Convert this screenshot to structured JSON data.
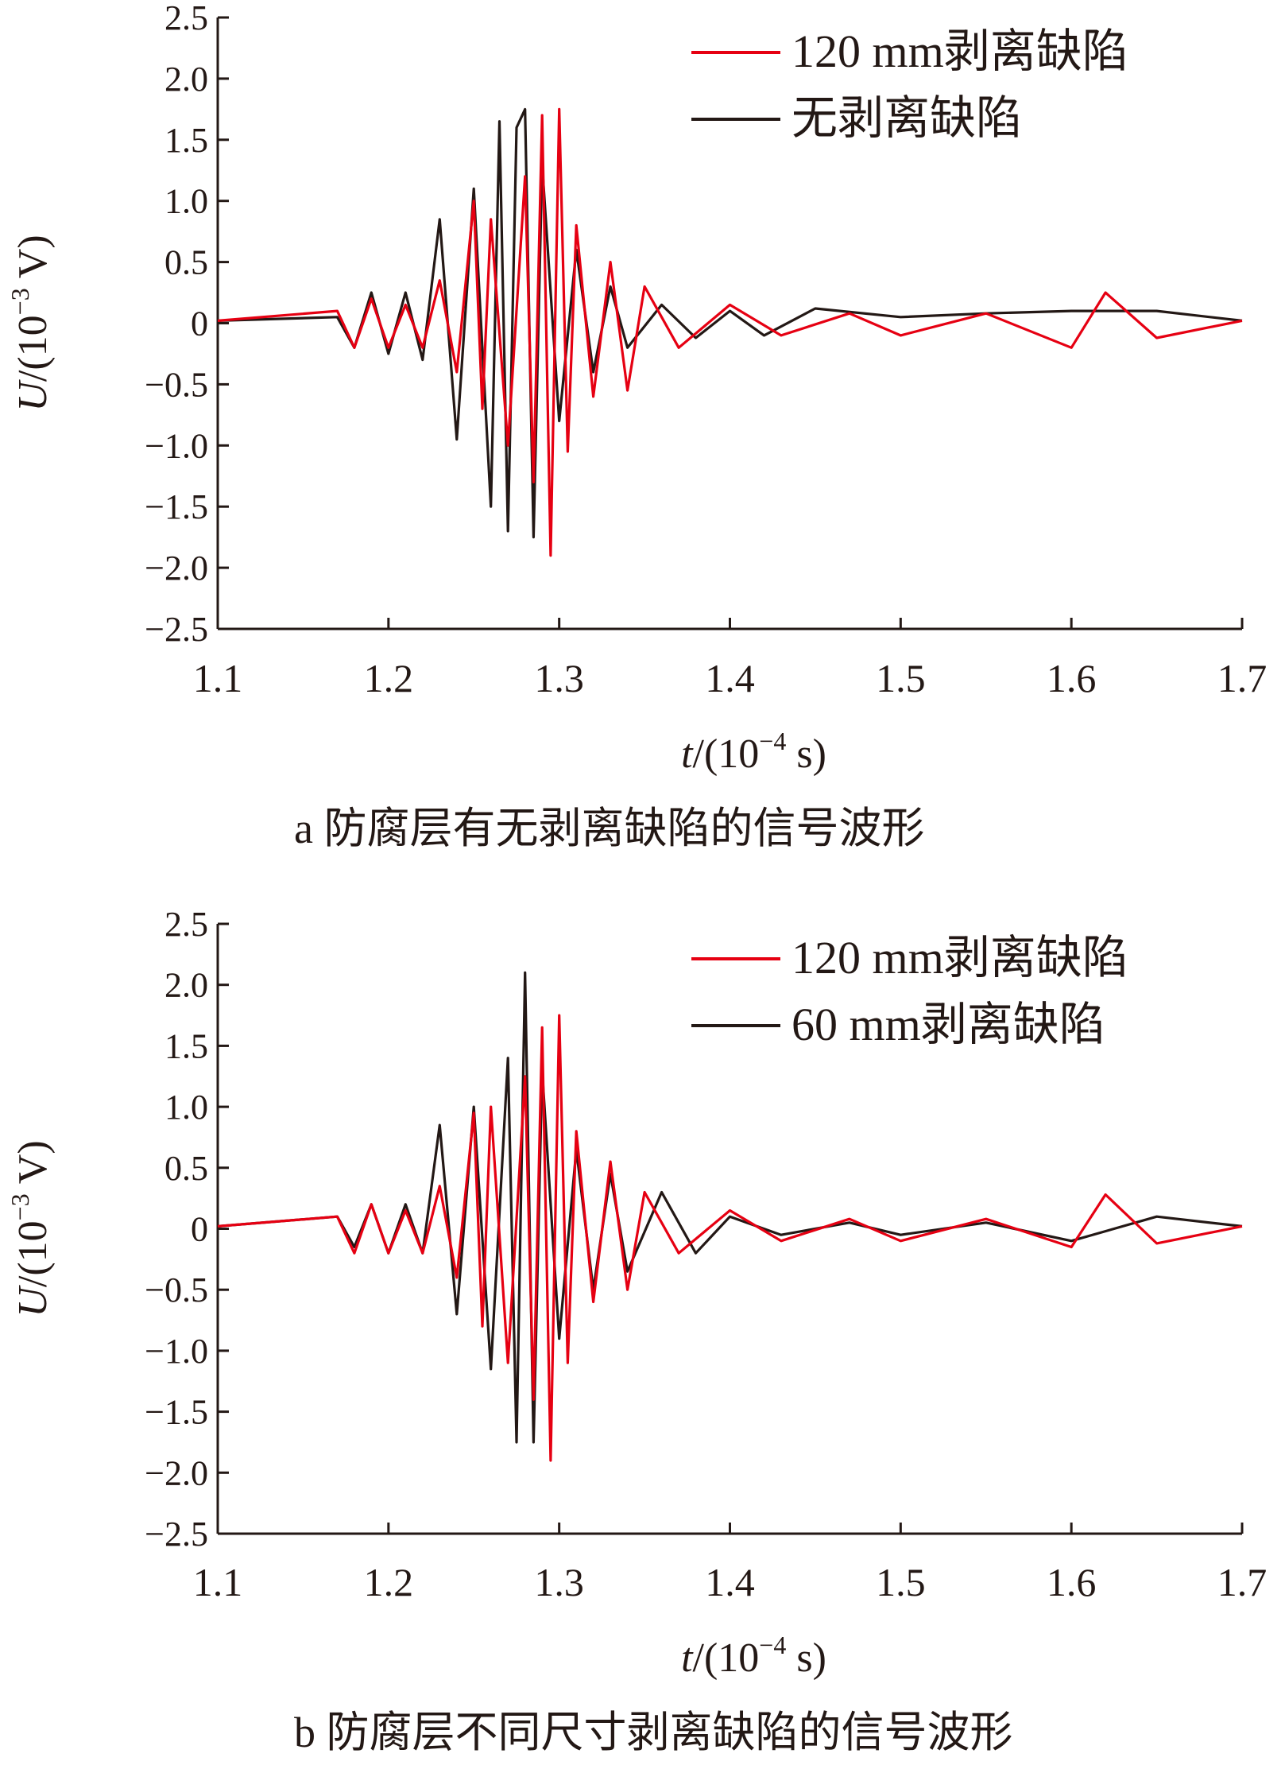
{
  "chart_data": [
    {
      "type": "line",
      "caption": "a 防腐层有无剥离缺陷的信号波形",
      "x_label": {
        "var": "t",
        "unit_open": "/(10",
        "exp": "−4",
        "unit_close": " s)"
      },
      "y_label": {
        "var": "U",
        "unit_open": "/(10",
        "exp": "−3",
        "unit_close": " V)"
      },
      "xlim": [
        1.1,
        1.7
      ],
      "ylim": [
        -2.5,
        2.5
      ],
      "x_ticks": [
        "1.1",
        "1.2",
        "1.3",
        "1.4",
        "1.5",
        "1.6",
        "1.7"
      ],
      "y_ticks": [
        "2.5",
        "2.0",
        "1.5",
        "1.0",
        "0.5",
        "0",
        "−0.5",
        "−1.0",
        "−1.5",
        "−2.0",
        "−2.5"
      ],
      "legend_position": "top-right",
      "series": [
        {
          "name": "无剥离缺陷",
          "color": "#231815",
          "x": [
            1.1,
            1.17,
            1.18,
            1.19,
            1.2,
            1.21,
            1.22,
            1.23,
            1.24,
            1.25,
            1.26,
            1.265,
            1.27,
            1.275,
            1.28,
            1.285,
            1.29,
            1.3,
            1.31,
            1.32,
            1.33,
            1.34,
            1.36,
            1.38,
            1.4,
            1.42,
            1.45,
            1.5,
            1.55,
            1.6,
            1.65,
            1.7
          ],
          "y": [
            0.02,
            0.05,
            -0.2,
            0.25,
            -0.25,
            0.25,
            -0.3,
            0.85,
            -0.95,
            1.1,
            -1.5,
            1.65,
            -1.7,
            1.6,
            1.75,
            -1.75,
            1.3,
            -0.8,
            0.6,
            -0.4,
            0.3,
            -0.2,
            0.15,
            -0.12,
            0.1,
            -0.1,
            0.12,
            0.05,
            0.08,
            0.1,
            0.1,
            0.02
          ]
        },
        {
          "name": "120 mm剥离缺陷",
          "color": "#e60012",
          "x": [
            1.1,
            1.17,
            1.18,
            1.19,
            1.2,
            1.21,
            1.22,
            1.23,
            1.24,
            1.25,
            1.255,
            1.26,
            1.27,
            1.28,
            1.285,
            1.29,
            1.295,
            1.3,
            1.305,
            1.31,
            1.32,
            1.33,
            1.34,
            1.35,
            1.37,
            1.4,
            1.43,
            1.47,
            1.5,
            1.55,
            1.6,
            1.62,
            1.65,
            1.7
          ],
          "y": [
            0.02,
            0.1,
            -0.2,
            0.2,
            -0.2,
            0.15,
            -0.2,
            0.35,
            -0.4,
            1.0,
            -0.7,
            0.85,
            -1.0,
            1.2,
            -1.3,
            1.7,
            -1.9,
            1.75,
            -1.05,
            0.8,
            -0.6,
            0.5,
            -0.55,
            0.3,
            -0.2,
            0.15,
            -0.1,
            0.08,
            -0.1,
            0.08,
            -0.2,
            0.25,
            -0.12,
            0.02
          ]
        }
      ]
    },
    {
      "type": "line",
      "caption": "b 防腐层不同尺寸剥离缺陷的信号波形",
      "x_label": {
        "var": "t",
        "unit_open": "/(10",
        "exp": "−4",
        "unit_close": " s)"
      },
      "y_label": {
        "var": "U",
        "unit_open": "/(10",
        "exp": "−3",
        "unit_close": " V)"
      },
      "xlim": [
        1.1,
        1.7
      ],
      "ylim": [
        -2.5,
        2.5
      ],
      "x_ticks": [
        "1.1",
        "1.2",
        "1.3",
        "1.4",
        "1.5",
        "1.6",
        "1.7"
      ],
      "y_ticks": [
        "2.5",
        "2.0",
        "1.5",
        "1.0",
        "0.5",
        "0",
        "−0.5",
        "−1.0",
        "−1.5",
        "−2.0",
        "−2.5"
      ],
      "legend_position": "top-right",
      "series": [
        {
          "name": "60 mm剥离缺陷",
          "color": "#231815",
          "x": [
            1.1,
            1.17,
            1.18,
            1.19,
            1.2,
            1.21,
            1.22,
            1.23,
            1.24,
            1.25,
            1.26,
            1.27,
            1.275,
            1.28,
            1.285,
            1.29,
            1.3,
            1.31,
            1.32,
            1.33,
            1.34,
            1.36,
            1.38,
            1.4,
            1.43,
            1.47,
            1.5,
            1.55,
            1.6,
            1.65,
            1.7
          ],
          "y": [
            0.02,
            0.1,
            -0.15,
            0.2,
            -0.2,
            0.2,
            -0.2,
            0.85,
            -0.7,
            1.0,
            -1.15,
            1.4,
            -1.75,
            2.1,
            -1.75,
            1.3,
            -0.9,
            0.65,
            -0.5,
            0.45,
            -0.35,
            0.3,
            -0.2,
            0.1,
            -0.05,
            0.05,
            -0.05,
            0.05,
            -0.1,
            0.1,
            0.02
          ]
        },
        {
          "name": "120 mm剥离缺陷",
          "color": "#e60012",
          "x": [
            1.1,
            1.17,
            1.18,
            1.19,
            1.2,
            1.21,
            1.22,
            1.23,
            1.24,
            1.25,
            1.255,
            1.26,
            1.27,
            1.28,
            1.285,
            1.29,
            1.295,
            1.3,
            1.305,
            1.31,
            1.32,
            1.33,
            1.34,
            1.35,
            1.37,
            1.4,
            1.43,
            1.47,
            1.5,
            1.55,
            1.6,
            1.62,
            1.65,
            1.7
          ],
          "y": [
            0.02,
            0.1,
            -0.2,
            0.2,
            -0.2,
            0.15,
            -0.2,
            0.35,
            -0.4,
            0.95,
            -0.8,
            1.0,
            -1.1,
            1.25,
            -1.4,
            1.65,
            -1.9,
            1.75,
            -1.1,
            0.8,
            -0.6,
            0.55,
            -0.5,
            0.3,
            -0.2,
            0.15,
            -0.1,
            0.08,
            -0.1,
            0.08,
            -0.15,
            0.28,
            -0.12,
            0.02
          ]
        }
      ]
    }
  ]
}
